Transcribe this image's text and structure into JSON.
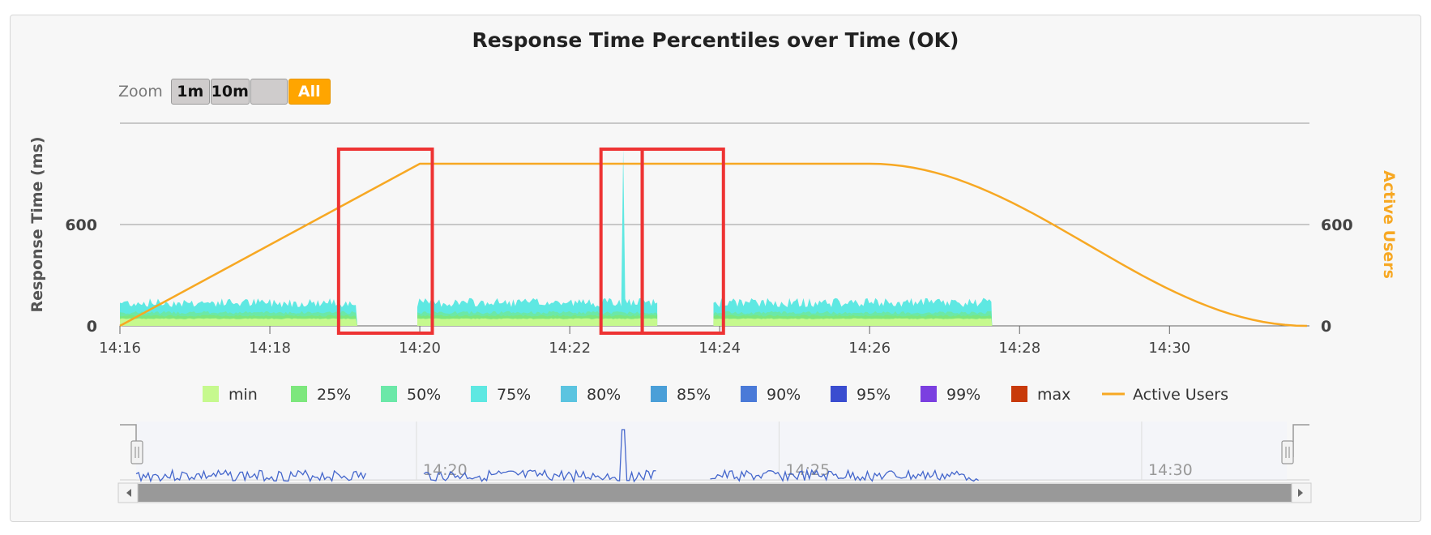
{
  "chart_data": {
    "type": "area",
    "title": "Response Time Percentiles over Time (OK)",
    "ylabel_left": "Response Time (ms)",
    "ylabel_right": "Active Users",
    "y_ticks_left": [
      "0",
      "600"
    ],
    "y_ticks_right": [
      "0",
      "600"
    ],
    "x_ticks": [
      "14:16",
      "14:18",
      "14:20",
      "14:22",
      "14:24",
      "14:26",
      "14:28",
      "14:30"
    ],
    "navigator_ticks": [
      "14:20",
      "14:25",
      "14:30"
    ],
    "response_time_segments": [
      {
        "start": "14:16:00",
        "end": "14:19:10"
      },
      {
        "start": "14:19:58",
        "end": "14:23:10"
      },
      {
        "start": "14:23:55",
        "end": "14:27:38"
      }
    ],
    "typical_percentile_values_ms": {
      "min": 40,
      "25%": 55,
      "50%": 70,
      "75%": 110
    },
    "spike": {
      "time": "14:22:43",
      "series": "75%",
      "value_ms": 1050
    },
    "active_users": [
      {
        "time": "14:16:00",
        "value": 0
      },
      {
        "time": "14:20:00",
        "value": 960
      },
      {
        "time": "14:26:00",
        "value": 960
      },
      {
        "time": "14:31:50",
        "value": 0
      }
    ],
    "legend": [
      {
        "name": "min",
        "color": "#c6f98e"
      },
      {
        "name": "25%",
        "color": "#7de77d"
      },
      {
        "name": "50%",
        "color": "#6be8a8"
      },
      {
        "name": "75%",
        "color": "#5ee8e2"
      },
      {
        "name": "80%",
        "color": "#5bc4e0"
      },
      {
        "name": "85%",
        "color": "#4a9fd8"
      },
      {
        "name": "90%",
        "color": "#4a7ad8"
      },
      {
        "name": "95%",
        "color": "#3a4dd0"
      },
      {
        "name": "99%",
        "color": "#7b3fe0"
      },
      {
        "name": "max",
        "color": "#c83a0a"
      },
      {
        "name": "Active Users",
        "color": "#f7a823"
      }
    ],
    "highlight_boxes": [
      {
        "start": "14:18:55",
        "end": "14:20:10"
      },
      {
        "start": "14:22:25",
        "end": "14:22:58"
      },
      {
        "start": "14:22:58",
        "end": "14:24:03"
      }
    ],
    "grid": true,
    "legend_position": "bottom"
  },
  "zoom": {
    "label": "Zoom",
    "buttons": [
      "1m",
      "10m",
      "",
      "All"
    ],
    "active": "All"
  },
  "colors": {
    "users_line": "#f7a823",
    "highlight": "#ee3333",
    "navigator_line": "#4466cc"
  }
}
